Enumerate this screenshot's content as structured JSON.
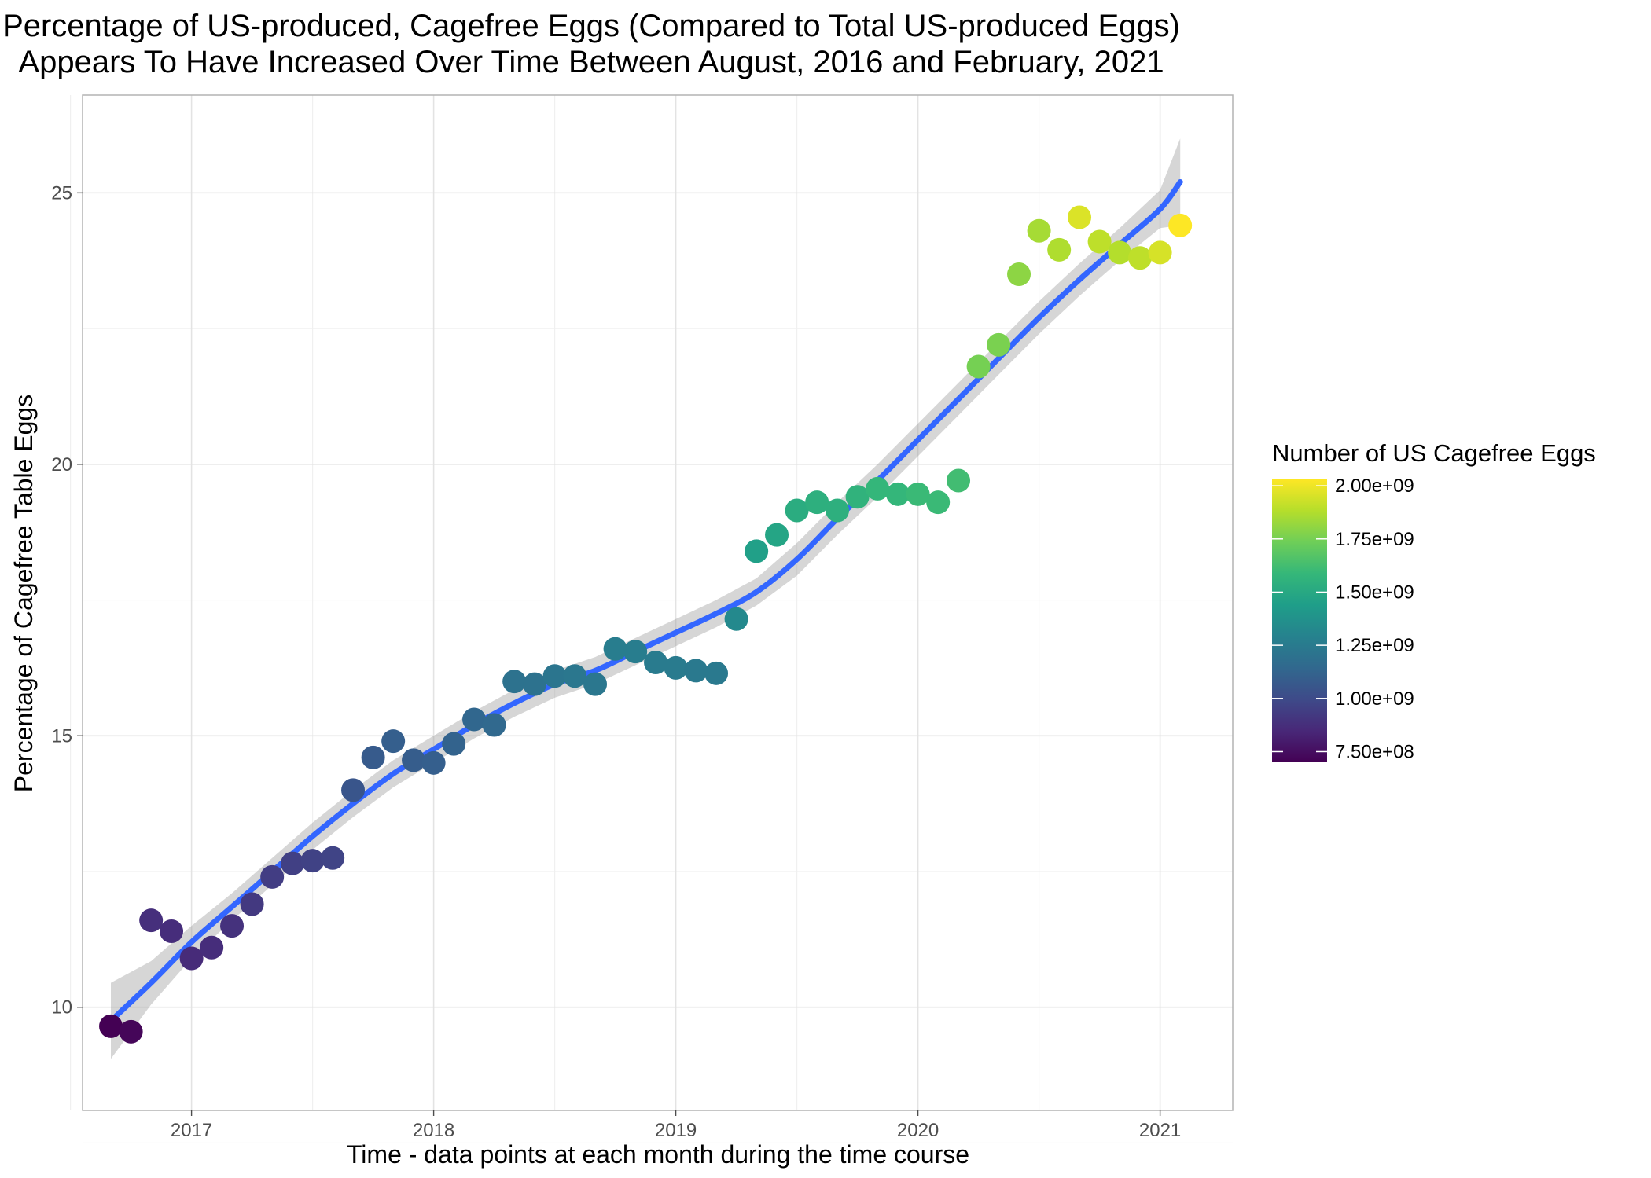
{
  "chart_data": {
    "type": "scatter",
    "title_lines": [
      "Percentage of US-produced, Cagefree Eggs (Compared to Total US-produced Eggs)",
      "Appears To Have Increased Over Time Between August, 2016 and February, 2021"
    ],
    "xlabel": "Time - data points at each month during the time course",
    "ylabel": "Percentage of Cagefree Table Eggs",
    "xlim": [
      2016.55,
      2021.3
    ],
    "ylim": [
      8.1,
      26.8
    ],
    "x_ticks": [
      2017,
      2018,
      2019,
      2020,
      2021
    ],
    "y_ticks": [
      10,
      15,
      20,
      25
    ],
    "grid": true,
    "legend": {
      "title": "Number of US Cagefree Eggs",
      "placement": "right",
      "range": [
        700000000,
        2030000000
      ],
      "breaks": [
        {
          "value": 750000000,
          "label": "7.50e+08"
        },
        {
          "value": 1000000000,
          "label": "1.00e+09"
        },
        {
          "value": 1250000000,
          "label": "1.25e+09"
        },
        {
          "value": 1500000000,
          "label": "1.50e+09"
        },
        {
          "value": 1750000000,
          "label": "1.75e+09"
        },
        {
          "value": 2000000000,
          "label": "2.00e+09"
        }
      ],
      "palette": [
        "#440154",
        "#482878",
        "#3e4a89",
        "#31688e",
        "#26828e",
        "#1f9e89",
        "#35b779",
        "#6ece58",
        "#b5de2b",
        "#fde725"
      ]
    },
    "smooth_color": "#3366ff",
    "band_color": "#999999",
    "points": [
      {
        "date": "2016-08",
        "x": 2016.667,
        "y": 9.65,
        "count": 700000000
      },
      {
        "date": "2016-09",
        "x": 2016.75,
        "y": 9.55,
        "count": 720000000
      },
      {
        "date": "2016-10",
        "x": 2016.833,
        "y": 11.6,
        "count": 880000000
      },
      {
        "date": "2016-11",
        "x": 2016.917,
        "y": 11.4,
        "count": 870000000
      },
      {
        "date": "2016-12",
        "x": 2017.0,
        "y": 10.9,
        "count": 860000000
      },
      {
        "date": "2017-01",
        "x": 2017.083,
        "y": 11.1,
        "count": 870000000
      },
      {
        "date": "2017-02",
        "x": 2017.167,
        "y": 11.5,
        "count": 890000000
      },
      {
        "date": "2017-03",
        "x": 2017.25,
        "y": 11.9,
        "count": 920000000
      },
      {
        "date": "2017-04",
        "x": 2017.333,
        "y": 12.4,
        "count": 940000000
      },
      {
        "date": "2017-05",
        "x": 2017.417,
        "y": 12.65,
        "count": 950000000
      },
      {
        "date": "2017-06",
        "x": 2017.5,
        "y": 12.7,
        "count": 960000000
      },
      {
        "date": "2017-07",
        "x": 2017.583,
        "y": 12.75,
        "count": 970000000
      },
      {
        "date": "2017-08",
        "x": 2017.667,
        "y": 14.0,
        "count": 1050000000
      },
      {
        "date": "2017-09",
        "x": 2017.75,
        "y": 14.6,
        "count": 1080000000
      },
      {
        "date": "2017-10",
        "x": 2017.833,
        "y": 14.9,
        "count": 1100000000
      },
      {
        "date": "2017-11",
        "x": 2017.917,
        "y": 14.55,
        "count": 1090000000
      },
      {
        "date": "2017-12",
        "x": 2018.0,
        "y": 14.5,
        "count": 1100000000
      },
      {
        "date": "2018-01",
        "x": 2018.083,
        "y": 14.85,
        "count": 1120000000
      },
      {
        "date": "2018-02",
        "x": 2018.167,
        "y": 15.3,
        "count": 1140000000
      },
      {
        "date": "2018-03",
        "x": 2018.25,
        "y": 15.2,
        "count": 1150000000
      },
      {
        "date": "2018-04",
        "x": 2018.333,
        "y": 16.0,
        "count": 1200000000
      },
      {
        "date": "2018-05",
        "x": 2018.417,
        "y": 15.95,
        "count": 1200000000
      },
      {
        "date": "2018-06",
        "x": 2018.5,
        "y": 16.1,
        "count": 1220000000
      },
      {
        "date": "2018-07",
        "x": 2018.583,
        "y": 16.1,
        "count": 1230000000
      },
      {
        "date": "2018-08",
        "x": 2018.667,
        "y": 15.95,
        "count": 1230000000
      },
      {
        "date": "2018-09",
        "x": 2018.75,
        "y": 16.6,
        "count": 1260000000
      },
      {
        "date": "2018-10",
        "x": 2018.833,
        "y": 16.55,
        "count": 1260000000
      },
      {
        "date": "2018-11",
        "x": 2018.917,
        "y": 16.35,
        "count": 1250000000
      },
      {
        "date": "2018-12",
        "x": 2019.0,
        "y": 16.25,
        "count": 1250000000
      },
      {
        "date": "2019-01",
        "x": 2019.083,
        "y": 16.2,
        "count": 1240000000
      },
      {
        "date": "2019-02",
        "x": 2019.167,
        "y": 16.15,
        "count": 1240000000
      },
      {
        "date": "2019-03",
        "x": 2019.25,
        "y": 17.15,
        "count": 1330000000
      },
      {
        "date": "2019-04",
        "x": 2019.333,
        "y": 18.4,
        "count": 1450000000
      },
      {
        "date": "2019-05",
        "x": 2019.417,
        "y": 18.7,
        "count": 1480000000
      },
      {
        "date": "2019-06",
        "x": 2019.5,
        "y": 19.15,
        "count": 1520000000
      },
      {
        "date": "2019-07",
        "x": 2019.583,
        "y": 19.3,
        "count": 1540000000
      },
      {
        "date": "2019-08",
        "x": 2019.667,
        "y": 19.15,
        "count": 1540000000
      },
      {
        "date": "2019-09",
        "x": 2019.75,
        "y": 19.4,
        "count": 1560000000
      },
      {
        "date": "2019-10",
        "x": 2019.833,
        "y": 19.55,
        "count": 1580000000
      },
      {
        "date": "2019-11",
        "x": 2019.917,
        "y": 19.45,
        "count": 1580000000
      },
      {
        "date": "2019-12",
        "x": 2020.0,
        "y": 19.45,
        "count": 1600000000
      },
      {
        "date": "2020-01",
        "x": 2020.083,
        "y": 19.3,
        "count": 1600000000
      },
      {
        "date": "2020-02",
        "x": 2020.167,
        "y": 19.7,
        "count": 1620000000
      },
      {
        "date": "2020-03",
        "x": 2020.25,
        "y": 21.8,
        "count": 1750000000
      },
      {
        "date": "2020-04",
        "x": 2020.333,
        "y": 22.2,
        "count": 1760000000
      },
      {
        "date": "2020-05",
        "x": 2020.417,
        "y": 23.5,
        "count": 1800000000
      },
      {
        "date": "2020-06",
        "x": 2020.5,
        "y": 24.3,
        "count": 1850000000
      },
      {
        "date": "2020-07",
        "x": 2020.583,
        "y": 23.95,
        "count": 1870000000
      },
      {
        "date": "2020-08",
        "x": 2020.667,
        "y": 24.55,
        "count": 1960000000
      },
      {
        "date": "2020-09",
        "x": 2020.75,
        "y": 24.1,
        "count": 1900000000
      },
      {
        "date": "2020-10",
        "x": 2020.833,
        "y": 23.9,
        "count": 1880000000
      },
      {
        "date": "2020-11",
        "x": 2020.917,
        "y": 23.8,
        "count": 1900000000
      },
      {
        "date": "2020-12",
        "x": 2021.0,
        "y": 23.9,
        "count": 1950000000
      },
      {
        "date": "2021-01",
        "x": 2021.083,
        "y": 24.4,
        "count": 2030000000
      }
    ],
    "smooth": [
      {
        "x": 2016.667,
        "y": 9.75,
        "lo": 9.05,
        "hi": 10.45
      },
      {
        "x": 2016.833,
        "y": 10.45,
        "lo": 10.05,
        "hi": 10.85
      },
      {
        "x": 2017.0,
        "y": 11.2,
        "lo": 10.9,
        "hi": 11.5
      },
      {
        "x": 2017.167,
        "y": 11.85,
        "lo": 11.6,
        "hi": 12.1
      },
      {
        "x": 2017.333,
        "y": 12.5,
        "lo": 12.25,
        "hi": 12.75
      },
      {
        "x": 2017.5,
        "y": 13.15,
        "lo": 12.9,
        "hi": 13.4
      },
      {
        "x": 2017.667,
        "y": 13.75,
        "lo": 13.5,
        "hi": 14.0
      },
      {
        "x": 2017.833,
        "y": 14.3,
        "lo": 14.05,
        "hi": 14.55
      },
      {
        "x": 2018.0,
        "y": 14.75,
        "lo": 14.5,
        "hi": 15.0
      },
      {
        "x": 2018.167,
        "y": 15.2,
        "lo": 14.95,
        "hi": 15.45
      },
      {
        "x": 2018.333,
        "y": 15.6,
        "lo": 15.35,
        "hi": 15.85
      },
      {
        "x": 2018.5,
        "y": 15.95,
        "lo": 15.7,
        "hi": 16.2
      },
      {
        "x": 2018.667,
        "y": 16.2,
        "lo": 15.95,
        "hi": 16.45
      },
      {
        "x": 2018.833,
        "y": 16.55,
        "lo": 16.3,
        "hi": 16.8
      },
      {
        "x": 2019.0,
        "y": 16.9,
        "lo": 16.65,
        "hi": 17.15
      },
      {
        "x": 2019.167,
        "y": 17.25,
        "lo": 17.0,
        "hi": 17.5
      },
      {
        "x": 2019.333,
        "y": 17.65,
        "lo": 17.4,
        "hi": 17.9
      },
      {
        "x": 2019.5,
        "y": 18.25,
        "lo": 17.95,
        "hi": 18.55
      },
      {
        "x": 2019.667,
        "y": 19.0,
        "lo": 18.7,
        "hi": 19.3
      },
      {
        "x": 2019.833,
        "y": 19.7,
        "lo": 19.4,
        "hi": 20.0
      },
      {
        "x": 2020.0,
        "y": 20.45,
        "lo": 20.15,
        "hi": 20.75
      },
      {
        "x": 2020.167,
        "y": 21.2,
        "lo": 20.9,
        "hi": 21.5
      },
      {
        "x": 2020.333,
        "y": 21.95,
        "lo": 21.65,
        "hi": 22.25
      },
      {
        "x": 2020.5,
        "y": 22.7,
        "lo": 22.4,
        "hi": 23.0
      },
      {
        "x": 2020.667,
        "y": 23.4,
        "lo": 23.1,
        "hi": 23.7
      },
      {
        "x": 2020.833,
        "y": 24.05,
        "lo": 23.75,
        "hi": 24.35
      },
      {
        "x": 2021.0,
        "y": 24.7,
        "lo": 24.35,
        "hi": 25.05
      },
      {
        "x": 2021.083,
        "y": 25.2,
        "lo": 24.4,
        "hi": 26.0
      }
    ]
  }
}
